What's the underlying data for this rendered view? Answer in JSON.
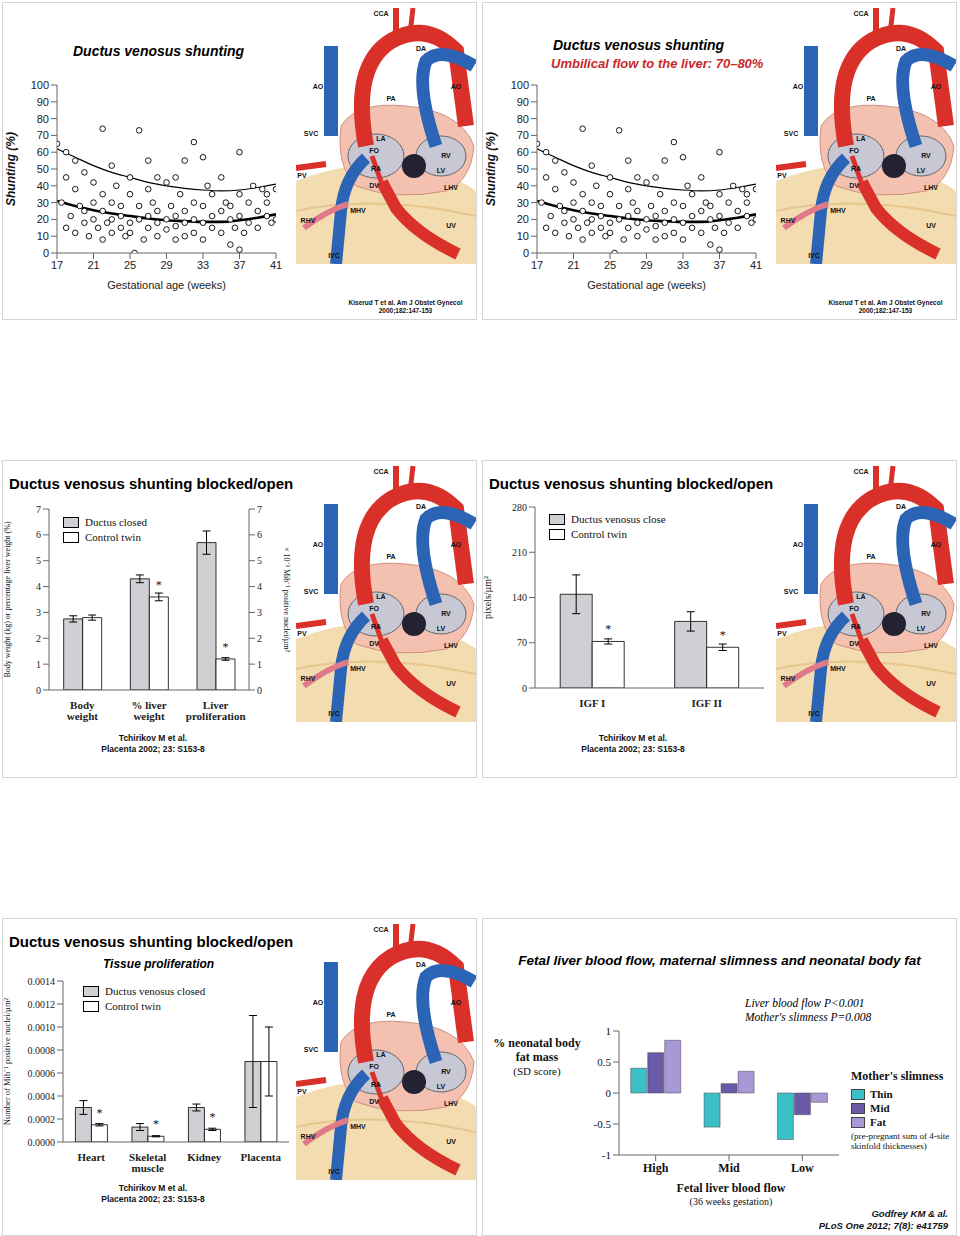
{
  "heart_diagram": {
    "labels": [
      "CCA",
      "DA",
      "AO",
      "PA",
      "AO",
      "SVC",
      "PV",
      "LA",
      "FO",
      "RA",
      "RV",
      "LV",
      "DV",
      "RHV",
      "LHV",
      "MHV",
      "UV",
      "IVC"
    ]
  },
  "chart_data": [
    {
      "type": "scatter",
      "title": "Ductus venosus shunting",
      "y_label": "Shunting (%)",
      "x_label": "Gestational age (weeks)",
      "xlim": [
        17,
        41
      ],
      "xticks": [
        17,
        21,
        25,
        29,
        33,
        37,
        41
      ],
      "ylim": [
        0,
        100
      ],
      "yticks": [
        0,
        10,
        20,
        30,
        40,
        50,
        60,
        70,
        80,
        90,
        100
      ],
      "series": [
        {
          "type": "scatter",
          "marker": "circle",
          "x": [
            17,
            17.5,
            18,
            18,
            18.5,
            18,
            19,
            19,
            19.5,
            19,
            20,
            20,
            20,
            20.5,
            21,
            21,
            21,
            21.5,
            22,
            22,
            22,
            22,
            22.5,
            23,
            23,
            23,
            23,
            23.5,
            24,
            24,
            24,
            24.5,
            25,
            25,
            25,
            25,
            25.5,
            26,
            26,
            26,
            26.5,
            27,
            27,
            27,
            27,
            27.5,
            28,
            28,
            28,
            28,
            29,
            29,
            29,
            29.5,
            30,
            30,
            30,
            30,
            30.5,
            31,
            31,
            31,
            31,
            32,
            32,
            32,
            32,
            33,
            33,
            33,
            33,
            33.5,
            34,
            34,
            34,
            35,
            35,
            35,
            35.5,
            36,
            36,
            36,
            36.5,
            37,
            37,
            37,
            37,
            37.5,
            38,
            38,
            38.5,
            39,
            39,
            39.5,
            40,
            40,
            40,
            40.5,
            41,
            41
          ],
          "values": [
            65,
            30,
            60,
            45,
            22,
            15,
            55,
            38,
            28,
            12,
            48,
            25,
            18,
            10,
            42,
            30,
            20,
            15,
            74,
            35,
            25,
            8,
            18,
            52,
            30,
            20,
            12,
            40,
            28,
            15,
            22,
            10,
            45,
            35,
            18,
            12,
            0,
            73,
            28,
            20,
            8,
            55,
            38,
            22,
            15,
            30,
            45,
            25,
            18,
            10,
            42,
            20,
            14,
            28,
            45,
            22,
            16,
            8,
            35,
            55,
            25,
            18,
            10,
            66,
            30,
            20,
            12,
            57,
            28,
            18,
            8,
            40,
            35,
            22,
            15,
            45,
            25,
            12,
            30,
            28,
            20,
            5,
            15,
            60,
            35,
            22,
            2,
            12,
            30,
            18,
            40,
            25,
            15,
            38,
            35,
            22,
            30,
            18,
            38,
            20
          ]
        },
        {
          "type": "line",
          "line_style": "solid",
          "x": [
            17,
            19,
            21,
            23,
            25,
            27,
            29,
            31,
            33,
            35,
            37,
            39,
            41
          ],
          "values": [
            31,
            28,
            25.5,
            23.5,
            22,
            20.5,
            19.5,
            19,
            18.5,
            18.5,
            19.5,
            21,
            23
          ]
        },
        {
          "type": "line",
          "line_style": "solid",
          "x": [
            17,
            19,
            21,
            23,
            25,
            27,
            29,
            31,
            33,
            35,
            37,
            39,
            41
          ],
          "values": [
            62,
            57,
            52,
            48,
            45,
            42,
            40,
            38.5,
            37.5,
            37,
            37.5,
            39,
            41
          ]
        }
      ],
      "source": [
        "Kiserud T et al. Am J Obstet Gynecol",
        "2000;182:147-153"
      ]
    },
    {
      "type": "scatter",
      "title": "Ductus venosus shunting",
      "subtitle": "Umbilical flow to the liver: 70–80%",
      "y_label": "Shunting (%)",
      "x_label": "Gestational age (weeks)",
      "xlim": [
        17,
        41
      ],
      "xticks": [
        17,
        21,
        25,
        29,
        33,
        37,
        41
      ],
      "ylim": [
        0,
        100
      ],
      "yticks": [
        0,
        10,
        20,
        30,
        40,
        50,
        60,
        70,
        80,
        90,
        100
      ],
      "series": [
        {
          "type": "scatter",
          "marker": "circle",
          "x": [
            17,
            17.5,
            18,
            18,
            18.5,
            18,
            19,
            19,
            19.5,
            19,
            20,
            20,
            20,
            20.5,
            21,
            21,
            21,
            21.5,
            22,
            22,
            22,
            22,
            22.5,
            23,
            23,
            23,
            23,
            23.5,
            24,
            24,
            24,
            24.5,
            25,
            25,
            25,
            25,
            25.5,
            26,
            26,
            26,
            26.5,
            27,
            27,
            27,
            27,
            27.5,
            28,
            28,
            28,
            28,
            29,
            29,
            29,
            29.5,
            30,
            30,
            30,
            30,
            30.5,
            31,
            31,
            31,
            31,
            32,
            32,
            32,
            32,
            33,
            33,
            33,
            33,
            33.5,
            34,
            34,
            34,
            35,
            35,
            35,
            35.5,
            36,
            36,
            36,
            36.5,
            37,
            37,
            37,
            37,
            37.5,
            38,
            38,
            38.5,
            39,
            39,
            39.5,
            40,
            40,
            40,
            40.5,
            41,
            41
          ],
          "values": [
            65,
            30,
            60,
            45,
            22,
            15,
            55,
            38,
            28,
            12,
            48,
            25,
            18,
            10,
            42,
            30,
            20,
            15,
            74,
            35,
            25,
            8,
            18,
            52,
            30,
            20,
            12,
            40,
            28,
            15,
            22,
            10,
            45,
            35,
            18,
            12,
            0,
            73,
            28,
            20,
            8,
            55,
            38,
            22,
            15,
            30,
            45,
            25,
            18,
            10,
            42,
            20,
            14,
            28,
            45,
            22,
            16,
            8,
            35,
            55,
            25,
            18,
            10,
            66,
            30,
            20,
            12,
            57,
            28,
            18,
            8,
            40,
            35,
            22,
            15,
            45,
            25,
            12,
            30,
            28,
            20,
            5,
            15,
            60,
            35,
            22,
            2,
            12,
            30,
            18,
            40,
            25,
            15,
            38,
            35,
            22,
            30,
            18,
            38,
            20
          ]
        },
        {
          "type": "line",
          "line_style": "solid",
          "x": [
            17,
            19,
            21,
            23,
            25,
            27,
            29,
            31,
            33,
            35,
            37,
            39,
            41
          ],
          "values": [
            31,
            28,
            25.5,
            23.5,
            22,
            20.5,
            19.5,
            19,
            18.5,
            18.5,
            19.5,
            21,
            23
          ]
        },
        {
          "type": "line",
          "line_style": "solid",
          "x": [
            17,
            19,
            21,
            23,
            25,
            27,
            29,
            31,
            33,
            35,
            37,
            39,
            41
          ],
          "values": [
            62,
            57,
            52,
            48,
            45,
            42,
            40,
            38.5,
            37.5,
            37,
            37.5,
            39,
            41
          ]
        }
      ],
      "source": [
        "Kiserud T et al. Am J Obstet Gynecol",
        "2000;182:147-153"
      ]
    },
    {
      "type": "bar",
      "title": "Ductus venosus shunting blocked/open",
      "categories": [
        "Body weight",
        "% liver weight",
        "Liver proliferation"
      ],
      "y_label": "Body weight (kg) or percentage liver weight (%)",
      "y2_label": "× 10⁻³ Mib⁻¹ positive nuclei/µm²",
      "ylim": [
        0,
        7
      ],
      "yticks": [
        0,
        1,
        2,
        3,
        4,
        5,
        6,
        7
      ],
      "y2lim": [
        0,
        7
      ],
      "y2ticks": [
        0,
        1,
        2,
        3,
        4,
        5,
        6,
        7
      ],
      "legend": "upper left",
      "series": [
        {
          "name": "Ductus closed",
          "color": "#cfcfd4",
          "values": [
            2.75,
            4.3,
            5.7
          ],
          "errors": [
            0.12,
            0.15,
            0.45
          ]
        },
        {
          "name": "Control twin",
          "color": "#ffffff",
          "values": [
            2.8,
            3.6,
            1.2
          ],
          "errors": [
            0.1,
            0.15,
            0.05
          ],
          "significance": [
            null,
            "*",
            "*"
          ]
        }
      ],
      "source": [
        "Tchirikov M et al.",
        "Placenta 2002; 23: S153-8"
      ]
    },
    {
      "type": "bar",
      "title": "Ductus venosus shunting blocked/open",
      "categories": [
        "IGF I",
        "IGF II"
      ],
      "y_label": "pixels/µm²",
      "ylim": [
        0,
        280
      ],
      "yticks": [
        0,
        70,
        140,
        210,
        280
      ],
      "legend": "upper left",
      "series": [
        {
          "name": "Ductus venosus close",
          "color": "#cfcfd4",
          "values": [
            145,
            103
          ],
          "errors": [
            30,
            15
          ]
        },
        {
          "name": "Control twin",
          "color": "#ffffff",
          "values": [
            72,
            63
          ],
          "errors": [
            4,
            5
          ],
          "significance": [
            "*",
            "*"
          ]
        }
      ],
      "source": [
        "Tchirikov M et al.",
        "Placenta 2002; 23: S153-8"
      ]
    },
    {
      "type": "bar",
      "title": "Ductus venosus shunting blocked/open",
      "subtitle": "Tissue proliferation",
      "categories": [
        "Heart",
        "Skeletal muscle",
        "Kidney",
        "Placenta"
      ],
      "y_label": "Number of Mib⁻¹ positive nuclei/µm²",
      "ylim": [
        0,
        0.0014
      ],
      "yticks": [
        {
          "value": 0,
          "label": "0.0000"
        },
        0.0002,
        0.0004,
        0.0006,
        0.0008,
        {
          "value": 0.001,
          "label": "0.0010"
        },
        0.0012,
        0.0014
      ],
      "legend": "upper left",
      "series": [
        {
          "name": "Ductus venosus closed",
          "color": "#cfcfd4",
          "values": [
            0.0003,
            0.00013,
            0.0003,
            0.0007
          ],
          "errors": [
            6e-05,
            3e-05,
            3e-05,
            0.0004
          ]
        },
        {
          "name": "Control twin",
          "color": "#ffffff",
          "values": [
            0.00015,
            5e-05,
            0.00011,
            0.0007
          ],
          "errors": [
            1e-05,
            5e-06,
            1e-05,
            0.0003
          ],
          "significance": [
            "*",
            "*",
            "*",
            null
          ]
        }
      ],
      "source": [
        "Tchirikov M et al.",
        "Placenta 2002; 23: S153-8"
      ]
    },
    {
      "type": "bar",
      "title": "Fetal liver blood flow, maternal slimness and neonatal body fat",
      "categories": [
        "High",
        "Mid",
        "Low"
      ],
      "y_label": "% neonatal body fat mass",
      "y_note": "(SD score)",
      "x_label": "Fetal liver blood flow",
      "x_note": "(36 weeks gestation)",
      "legend_title": "Mother's slimness",
      "legend_note": "(pre-pregnant sum of 4-site skinfold thicknesses)",
      "legend": "right",
      "ylim": [
        -1,
        1
      ],
      "yticks": [
        -1,
        -0.5,
        0,
        0.5,
        1
      ],
      "annotations": [
        "Liver blood flow P<0.001",
        "Mother's slimness P=0.008"
      ],
      "series": [
        {
          "name": "Thin",
          "color": "#3cc0c8",
          "values": [
            0.4,
            -0.55,
            -0.75
          ]
        },
        {
          "name": "Mid",
          "color": "#6a5aa8",
          "values": [
            0.65,
            0.15,
            -0.35
          ]
        },
        {
          "name": "Fat",
          "color": "#a898d8",
          "values": [
            0.85,
            0.35,
            -0.15
          ]
        }
      ],
      "source": [
        "Godfrey KM & al.",
        "PLoS One 2012; 7(8): e41759"
      ]
    }
  ]
}
